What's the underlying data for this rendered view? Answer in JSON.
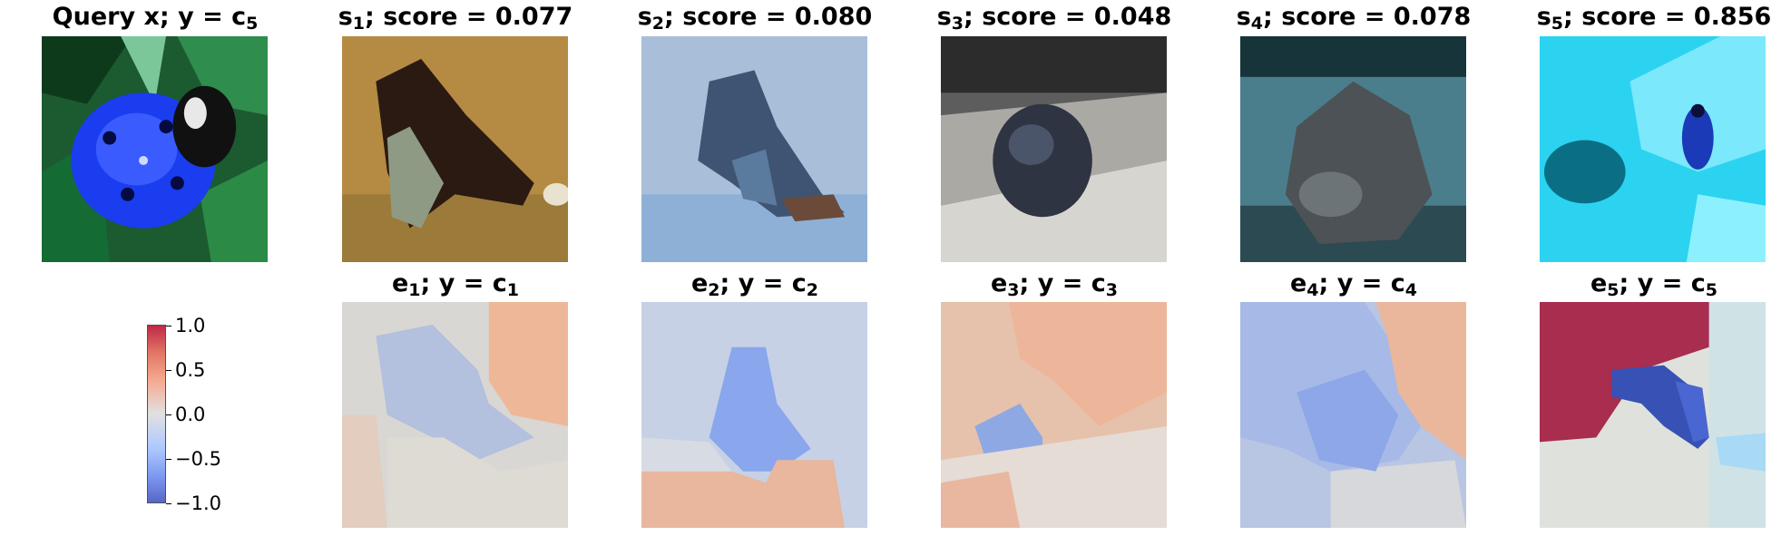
{
  "query": {
    "label": "Query x; y = c",
    "sub": "5"
  },
  "samples": [
    {
      "name": "s",
      "idx": "1",
      "score_label": "; score = 0.077",
      "score": 0.077
    },
    {
      "name": "s",
      "idx": "2",
      "score_label": "; score = 0.080",
      "score": 0.08
    },
    {
      "name": "s",
      "idx": "3",
      "score_label": "; score = 0.048",
      "score": 0.048
    },
    {
      "name": "s",
      "idx": "4",
      "score_label": "; score = 0.078",
      "score": 0.078
    },
    {
      "name": "s",
      "idx": "5",
      "score_label": "; score = 0.856",
      "score": 0.856
    }
  ],
  "explanations": [
    {
      "name": "e",
      "idx": "1",
      "mid": "; y = c",
      "cls": "1"
    },
    {
      "name": "e",
      "idx": "2",
      "mid": "; y = c",
      "cls": "2"
    },
    {
      "name": "e",
      "idx": "3",
      "mid": "; y = c",
      "cls": "3"
    },
    {
      "name": "e",
      "idx": "4",
      "mid": "; y = c",
      "cls": "4"
    },
    {
      "name": "e",
      "idx": "5",
      "mid": "; y = c",
      "cls": "5"
    }
  ],
  "colorbar": {
    "ticks": [
      "1.0",
      "0.5",
      "0.0",
      "−0.5",
      "−1.0"
    ],
    "colors": {
      "high": "#b40426",
      "mid": "#dddcdc",
      "low": "#3b4cc0"
    }
  }
}
